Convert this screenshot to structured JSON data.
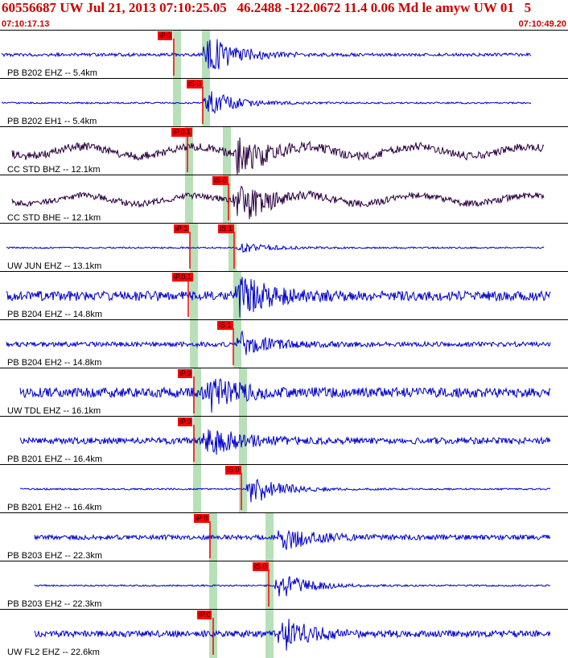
{
  "header": {
    "title": "60556687 UW Jul 21, 2013 07:10:25.05   46.2488 -122.0672 11.4 0.06 Md le amyw UW 01   5",
    "start_time": "07:10:17.13",
    "end_time": "07:10:49.20"
  },
  "colors": {
    "blue_trace": "#0000cc",
    "dark_trace": "#2a0040",
    "pick_box": "#ff0000",
    "window_band": "#b8e0b8",
    "header_text": "#cc0000"
  },
  "traces": [
    {
      "label": "PB B202 EHZ -- 5.4km",
      "picks": [
        "iP.0"
      ],
      "color": "blue"
    },
    {
      "label": "PB B202 EH1 -- 5.4km",
      "picks": [
        "iS 0"
      ],
      "color": "blue"
    },
    {
      "label": "CC STD BHZ -- 12.1km",
      "picks": [
        "iP.0.1"
      ],
      "color": "dark"
    },
    {
      "label": "CC STD BHE -- 12.1km",
      "picks": [
        "iS 0"
      ],
      "color": "dark"
    },
    {
      "label": "UW JUN EHZ -- 13.1km",
      "picks": [
        "iP 1",
        "iS 1"
      ],
      "color": "blue"
    },
    {
      "label": "PB B204 EHZ -- 14.8km",
      "picks": [
        "iP.0.1"
      ],
      "color": "blue"
    },
    {
      "label": "PB B204 EH2 -- 14.8km",
      "picks": [
        "iS 1"
      ],
      "color": "blue"
    },
    {
      "label": "UW TDL EHZ -- 16.1km",
      "picks": [
        "iP.0"
      ],
      "color": "blue"
    },
    {
      "label": "PB B201 EHZ -- 16.4km",
      "picks": [
        "iP.0"
      ],
      "color": "blue"
    },
    {
      "label": "PB B201 EH2 -- 16.4km",
      "picks": [
        "iS 0"
      ],
      "color": "blue"
    },
    {
      "label": "PB B203 EHZ -- 22.3km",
      "picks": [
        "iP 0"
      ],
      "color": "blue"
    },
    {
      "label": "PB B203 EH2 -- 22.3km",
      "picks": [
        "iS 0"
      ],
      "color": "blue"
    },
    {
      "label": "UW FL2 EHZ -- 22.6km",
      "picks": [
        "iP.0"
      ],
      "color": "blue"
    }
  ]
}
